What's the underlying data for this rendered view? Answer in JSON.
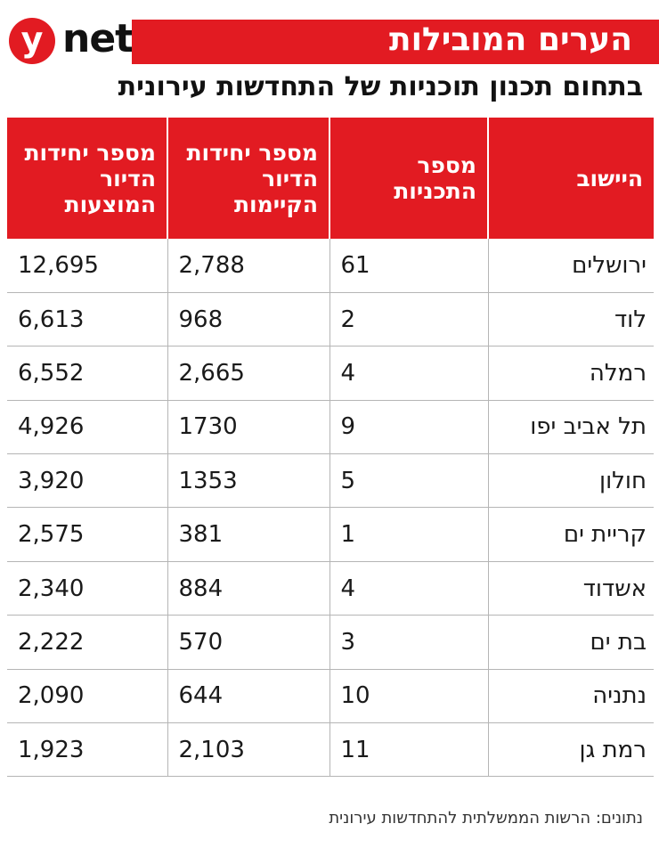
{
  "brand": {
    "logo_y": "y",
    "logo_net": "net"
  },
  "header": {
    "title": "הערים המובילות",
    "subtitle": "בתחום תכנון תוכניות של התחדשות עירונית"
  },
  "colors": {
    "accent": "#e21b22",
    "text": "#222222",
    "grid": "#b5b5b5"
  },
  "chart_data": {
    "type": "table",
    "columns": [
      "היישוב",
      "מספר התכניות",
      "מספר יחידות הדיור הקיימות",
      "מספר יחידות הדיור המוצעות"
    ],
    "rows": [
      {
        "city": "ירושלים",
        "plans": "61",
        "existing": "2,788",
        "proposed": "12,695"
      },
      {
        "city": "לוד",
        "plans": "2",
        "existing": "968",
        "proposed": "6,613"
      },
      {
        "city": "רמלה",
        "plans": "4",
        "existing": "2,665",
        "proposed": "6,552"
      },
      {
        "city": "תל אביב יפו",
        "plans": "9",
        "existing": "1730",
        "proposed": "4,926"
      },
      {
        "city": "חולון",
        "plans": "5",
        "existing": "1353",
        "proposed": "3,920"
      },
      {
        "city": "קריית ים",
        "plans": "1",
        "existing": "381",
        "proposed": "2,575"
      },
      {
        "city": "אשדוד",
        "plans": "4",
        "existing": "884",
        "proposed": "2,340"
      },
      {
        "city": "בת ים",
        "plans": "3",
        "existing": "570",
        "proposed": "2,222"
      },
      {
        "city": "נתניה",
        "plans": "10",
        "existing": "644",
        "proposed": "2,090"
      },
      {
        "city": "רמת גן",
        "plans": "11",
        "existing": "2,103",
        "proposed": "1,923"
      }
    ],
    "source": "נתונים: הרשות הממשלתית להתחדשות עירונית"
  }
}
